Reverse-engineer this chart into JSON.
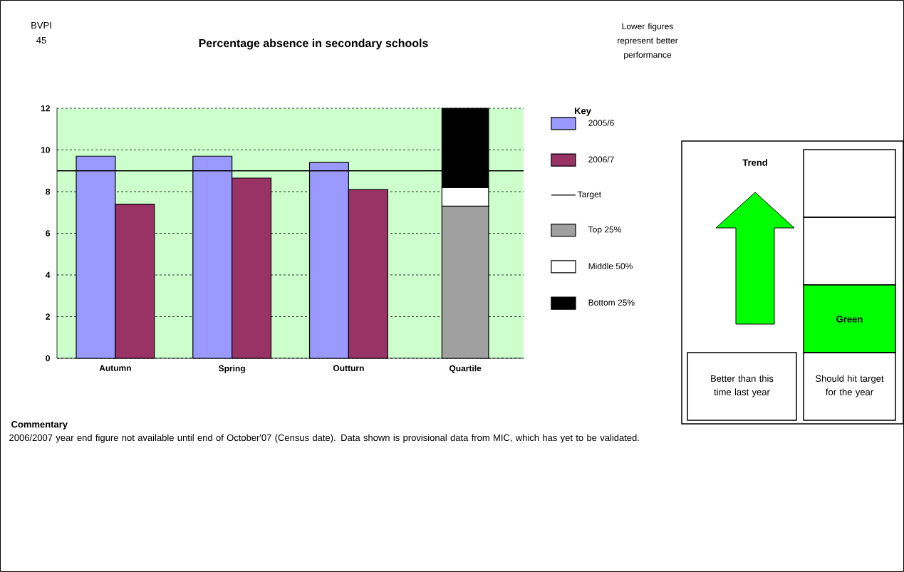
{
  "chart_data": [
    {
      "type": "bar",
      "title": "Percentage absence in secondary schools",
      "categories": [
        "Autumn",
        "Spring",
        "Outturn",
        "Quartile"
      ],
      "series": [
        {
          "name": "2005/6",
          "color": "#9999ff",
          "values": [
            9.7,
            9.7,
            9.4,
            null
          ]
        },
        {
          "name": "2006/7",
          "color": "#993366",
          "values": [
            7.4,
            8.65,
            8.1,
            null
          ]
        },
        {
          "name": "Top 25%",
          "color": "#a0a0a0",
          "values": [
            null,
            null,
            null,
            7.3
          ],
          "base": [
            null,
            null,
            null,
            0
          ]
        },
        {
          "name": "Middle 50%",
          "color": "#ffffff",
          "values": [
            null,
            null,
            null,
            0.9
          ],
          "base": [
            null,
            null,
            null,
            7.3
          ]
        },
        {
          "name": "Bottom 25%",
          "color": "#000000",
          "values": [
            null,
            null,
            null,
            3.8
          ],
          "base": [
            null,
            null,
            null,
            8.2
          ]
        }
      ],
      "ylim": [
        0,
        12
      ],
      "yticks": [
        0,
        2,
        4,
        6,
        8,
        10,
        12
      ],
      "grid": "y",
      "ref_lines": [
        {
          "axis": "y",
          "value": 9,
          "label": "Target",
          "color": "#000000"
        }
      ],
      "legend": "right",
      "legend_title": "Key",
      "annotations": [
        "BVPI 45",
        "Lower figures represent better performance",
        "Commentary",
        "2006/2007 year end figure not available until end of October'07 (Census date). Data shown is provisional data from MIC, which has yet to be validated."
      ]
    },
    {
      "type": "other",
      "annotations": [
        "Trend",
        "Better than this time last year",
        "Should hit target for the year",
        "Green"
      ]
    }
  ]
}
